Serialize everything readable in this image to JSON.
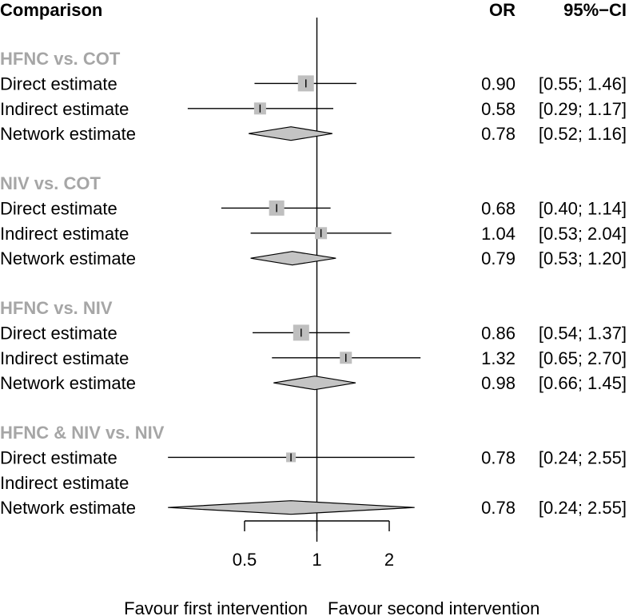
{
  "chart_data": {
    "type": "forest",
    "headers": {
      "comparison": "Comparison",
      "or": "OR",
      "ci": "95%−CI"
    },
    "scale": "log",
    "xlim": [
      0.5,
      2
    ],
    "reference": 1,
    "ticks": [
      {
        "value": 0.5,
        "label": "0.5"
      },
      {
        "value": 1,
        "label": "1"
      },
      {
        "value": 2,
        "label": "2"
      }
    ],
    "xlabel_left": "Favour first intervention",
    "xlabel_right": "Favour second intervention",
    "groups": [
      {
        "title": "HFNC vs. COT",
        "rows": [
          {
            "label": "Direct estimate",
            "kind": "square",
            "est": 0.9,
            "lo": 0.55,
            "hi": 1.46,
            "weight": 1.0,
            "or_text": "0.90",
            "ci_text": "[0.55; 1.46]"
          },
          {
            "label": "Indirect estimate",
            "kind": "square",
            "est": 0.58,
            "lo": 0.29,
            "hi": 1.17,
            "weight": 0.55,
            "or_text": "0.58",
            "ci_text": "[0.29; 1.17]"
          },
          {
            "label": "Network estimate",
            "kind": "diamond",
            "est": 0.78,
            "lo": 0.52,
            "hi": 1.16,
            "or_text": "0.78",
            "ci_text": "[0.52; 1.16]"
          }
        ]
      },
      {
        "title": "NIV vs. COT",
        "rows": [
          {
            "label": "Direct estimate",
            "kind": "square",
            "est": 0.68,
            "lo": 0.4,
            "hi": 1.14,
            "weight": 0.95,
            "or_text": "0.68",
            "ci_text": "[0.40; 1.14]"
          },
          {
            "label": "Indirect estimate",
            "kind": "square",
            "est": 1.04,
            "lo": 0.53,
            "hi": 2.04,
            "weight": 0.6,
            "or_text": "1.04",
            "ci_text": "[0.53; 2.04]"
          },
          {
            "label": "Network estimate",
            "kind": "diamond",
            "est": 0.79,
            "lo": 0.53,
            "hi": 1.2,
            "or_text": "0.79",
            "ci_text": "[0.53; 1.20]"
          }
        ]
      },
      {
        "title": "HFNC vs. NIV",
        "rows": [
          {
            "label": "Direct estimate",
            "kind": "square",
            "est": 0.86,
            "lo": 0.54,
            "hi": 1.37,
            "weight": 1.05,
            "or_text": "0.86",
            "ci_text": "[0.54; 1.37]"
          },
          {
            "label": "Indirect estimate",
            "kind": "square",
            "est": 1.32,
            "lo": 0.65,
            "hi": 2.7,
            "weight": 0.6,
            "or_text": "1.32",
            "ci_text": "[0.65; 2.70]"
          },
          {
            "label": "Network estimate",
            "kind": "diamond",
            "est": 0.98,
            "lo": 0.66,
            "hi": 1.45,
            "or_text": "0.98",
            "ci_text": "[0.66; 1.45]"
          }
        ]
      },
      {
        "title": "HFNC & NIV vs. NIV",
        "rows": [
          {
            "label": "Direct estimate",
            "kind": "square",
            "est": 0.78,
            "lo": 0.24,
            "hi": 2.55,
            "weight": 0.35,
            "or_text": "0.78",
            "ci_text": "[0.24; 2.55]"
          },
          {
            "label": "Indirect estimate",
            "kind": "none"
          },
          {
            "label": "Network estimate",
            "kind": "diamond",
            "est": 0.78,
            "lo": 0.24,
            "hi": 2.55,
            "or_text": "0.78",
            "ci_text": "[0.24; 2.55]"
          }
        ]
      }
    ]
  }
}
